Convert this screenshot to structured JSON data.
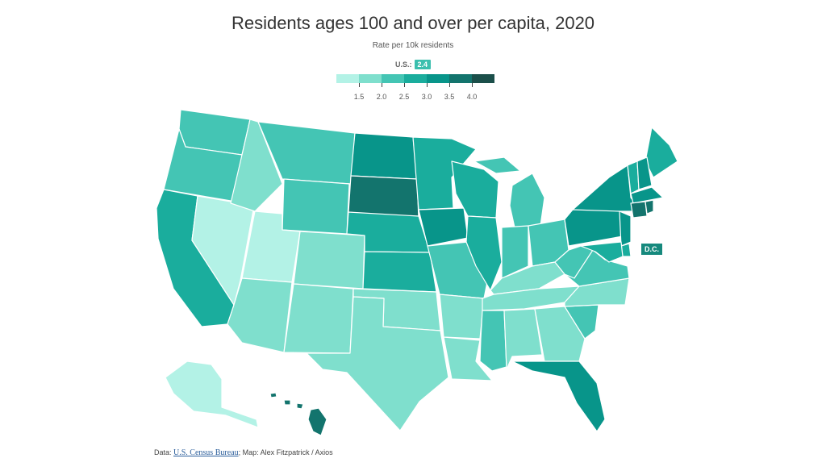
{
  "title": "Residents ages 100 and over per capita, 2020",
  "subtitle": "Rate per 10k residents",
  "us_average": {
    "label": "U.S.:",
    "value": "2.4"
  },
  "legend": {
    "colors": [
      "#b3f2e6",
      "#7fdfcd",
      "#44c5b4",
      "#1aad9d",
      "#08958a",
      "#13746d",
      "#1b4f4a"
    ],
    "ticks": [
      "1.5",
      "2.0",
      "2.5",
      "3.0",
      "3.5",
      "4.0"
    ]
  },
  "dc_label": "D.C.",
  "source": {
    "prefix": "Data: ",
    "link_text": "U.S. Census Bureau",
    "suffix": "; Map: Alex Fitzpatrick / Axios"
  },
  "map_data": {
    "WA": 2,
    "OR": 2,
    "CA": 3,
    "NV": 0,
    "ID": 1,
    "MT": 2,
    "WY": 2,
    "UT": 0,
    "AZ": 1,
    "CO": 1,
    "NM": 1,
    "ND": 4,
    "SD": 5,
    "NE": 3,
    "KS": 3,
    "OK": 1,
    "TX": 1,
    "MN": 3,
    "IA": 4,
    "MO": 2,
    "AR": 1,
    "LA": 1,
    "WI": 3,
    "IL": 3,
    "MI": 2,
    "IN": 2,
    "OH": 2,
    "KY": 1,
    "TN": 1,
    "MS": 2,
    "AL": 1,
    "GA": 1,
    "FL": 4,
    "SC": 2,
    "NC": 1,
    "VA": 2,
    "WV": 2,
    "PA": 4,
    "NY": 4,
    "ME": 3,
    "VT": 3,
    "NH": 4,
    "MA": 4,
    "CT": 5,
    "RI": 5,
    "NJ": 4,
    "DE": 3,
    "MD": 3,
    "AK": 0,
    "HI": 5
  }
}
